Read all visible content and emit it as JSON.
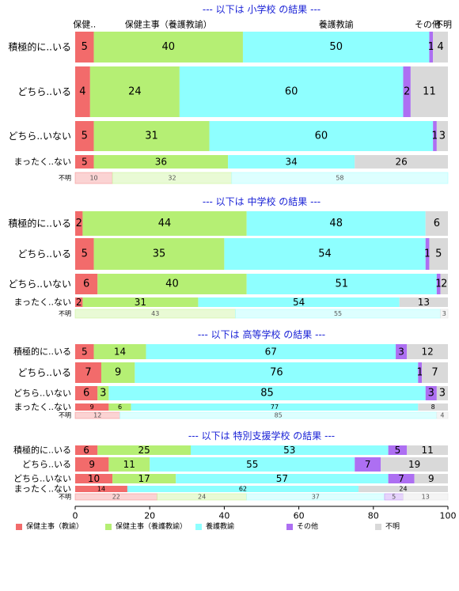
{
  "chart_data": {
    "type": "bar",
    "orientation": "horizontal",
    "stacked": true,
    "xlim": [
      0,
      100
    ],
    "x_ticks": [
      "0",
      "20",
      "40",
      "60",
      "80",
      "100"
    ],
    "grid": false,
    "legend_position": "bottom",
    "series": [
      {
        "name": "保健主事（教諭）",
        "color": "#f26b6b"
      },
      {
        "name": "保健主事（養護教諭）",
        "color": "#b5ef74"
      },
      {
        "name": "養護教諭",
        "color": "#8effff"
      },
      {
        "name": "その他",
        "color": "#ad6ff2"
      },
      {
        "name": "不明",
        "color": "#d9d9d9"
      }
    ],
    "panels": [
      {
        "title": "--- 以下は 小学校 の結果 ---",
        "top_labels": [
          "保健..",
          "保健主事（養護教諭）",
          "養護教諭",
          "その他",
          "不明"
        ],
        "rows": [
          {
            "label": "積極的に..いる",
            "values": [
              5,
              40,
              50,
              1,
              4
            ]
          },
          {
            "label": "どちら..いる",
            "values": [
              4,
              24,
              60,
              2,
              11
            ]
          },
          {
            "label": "どちら..いない",
            "values": [
              5,
              31,
              60,
              1,
              3
            ]
          },
          {
            "label": "まったく..ない",
            "values": [
              5,
              36,
              34,
              0,
              26
            ]
          },
          {
            "label": "不明",
            "values": [
              10,
              32,
              58,
              0,
              0
            ],
            "faded": true
          }
        ]
      },
      {
        "title": "--- 以下は 中学校 の結果 ---",
        "rows": [
          {
            "label": "積極的に..いる",
            "values": [
              2,
              44,
              48,
              0,
              6
            ]
          },
          {
            "label": "どちら..いる",
            "values": [
              5,
              35,
              54,
              1,
              5
            ]
          },
          {
            "label": "どちら..いない",
            "values": [
              6,
              40,
              51,
              1,
              2
            ]
          },
          {
            "label": "まったく..ない",
            "values": [
              2,
              31,
              54,
              0,
              13
            ]
          },
          {
            "label": "不明",
            "values": [
              0,
              43,
              55,
              0,
              3
            ],
            "faded": true
          }
        ]
      },
      {
        "title": "--- 以下は 高等学校 の結果 ---",
        "rows": [
          {
            "label": "積極的に..いる",
            "values": [
              5,
              14,
              67,
              3,
              12
            ]
          },
          {
            "label": "どちら..いる",
            "values": [
              7,
              9,
              76,
              1,
              7
            ]
          },
          {
            "label": "どちら..いない",
            "values": [
              6,
              3,
              85,
              3,
              3
            ]
          },
          {
            "label": "まったく..ない",
            "values": [
              9,
              6,
              77,
              0,
              8
            ]
          },
          {
            "label": "不明",
            "values": [
              12,
              0,
              85,
              0,
              4
            ],
            "faded": true
          }
        ]
      },
      {
        "title": "--- 以下は 特別支援学校 の結果 ---",
        "rows": [
          {
            "label": "積極的に..いる",
            "values": [
              6,
              25,
              53,
              5,
              11
            ]
          },
          {
            "label": "どちら..いる",
            "values": [
              9,
              11,
              55,
              7,
              19
            ]
          },
          {
            "label": "どちら..いない",
            "values": [
              10,
              17,
              57,
              7,
              9
            ]
          },
          {
            "label": "まったく..ない",
            "values": [
              14,
              0,
              62,
              0,
              24
            ]
          },
          {
            "label": "不明",
            "values": [
              22,
              24,
              37,
              5,
              13
            ],
            "faded": true
          }
        ]
      }
    ]
  }
}
